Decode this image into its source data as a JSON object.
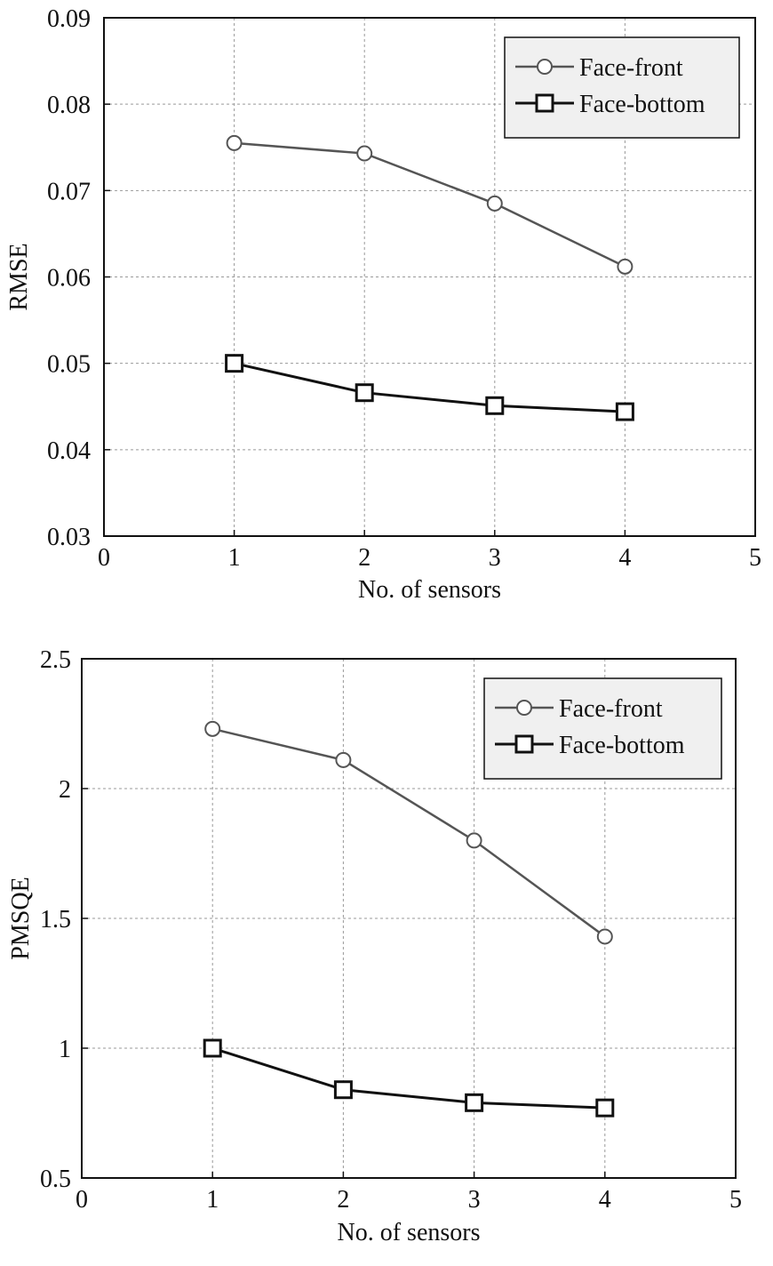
{
  "chart_data": [
    {
      "type": "line",
      "xlabel": "No. of sensors",
      "ylabel": "RMSE",
      "xlim": [
        0,
        5
      ],
      "ylim": [
        0.03,
        0.09
      ],
      "xticks": [
        "0",
        "1",
        "2",
        "3",
        "4",
        "5"
      ],
      "yticks": [
        "0.03",
        "0.04",
        "0.05",
        "0.06",
        "0.07",
        "0.08",
        "0.09"
      ],
      "grid": true,
      "legend_position": "top-right",
      "series": [
        {
          "name": "Face-front",
          "marker": "circle",
          "color": "#555555",
          "x": [
            1,
            2,
            3,
            4
          ],
          "y": [
            0.0755,
            0.0743,
            0.0685,
            0.0612
          ]
        },
        {
          "name": "Face-bottom",
          "marker": "square",
          "color": "#111111",
          "x": [
            1,
            2,
            3,
            4
          ],
          "y": [
            0.05,
            0.0466,
            0.0451,
            0.0444
          ]
        }
      ]
    },
    {
      "type": "line",
      "xlabel": "No. of sensors",
      "ylabel": "PMSQE",
      "xlim": [
        0,
        5
      ],
      "ylim": [
        0.5,
        2.5
      ],
      "xticks": [
        "0",
        "1",
        "2",
        "3",
        "4",
        "5"
      ],
      "yticks": [
        "0.5",
        "1",
        "1.5",
        "2",
        "2.5"
      ],
      "grid": true,
      "legend_position": "top-right",
      "series": [
        {
          "name": "Face-front",
          "marker": "circle",
          "color": "#555555",
          "x": [
            1,
            2,
            3,
            4
          ],
          "y": [
            2.23,
            2.11,
            1.8,
            1.43
          ]
        },
        {
          "name": "Face-bottom",
          "marker": "square",
          "color": "#111111",
          "x": [
            1,
            2,
            3,
            4
          ],
          "y": [
            1.0,
            0.84,
            0.79,
            0.77
          ]
        }
      ]
    }
  ]
}
